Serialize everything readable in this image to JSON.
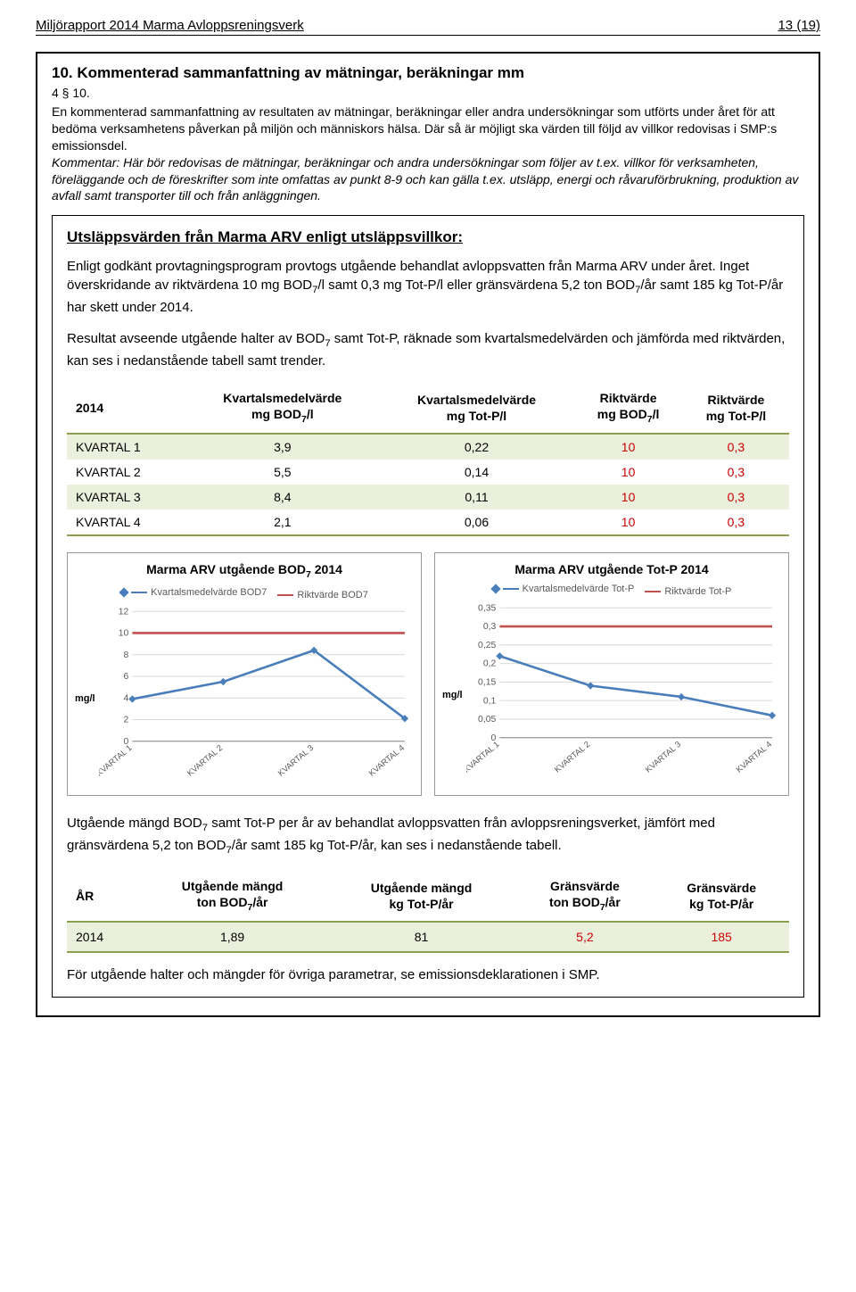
{
  "header": {
    "left": "Miljörapport 2014 Marma Avloppsreningsverk",
    "right": "13 (19)"
  },
  "section": {
    "heading": "10. Kommenterad sammanfattning av mätningar, beräkningar mm",
    "law_ref": "4 § 10.",
    "intro_plain": "En kommenterad sammanfattning av resultaten av mätningar, beräkningar eller andra undersökningar som utförts under året för att bedöma verksamhetens påverkan på miljön och människors hälsa. Där så är möjligt ska värden till följd av villkor redovisas i SMP:s emissionsdel.",
    "intro_italic": "Kommentar: Här bör redovisas de mätningar, beräkningar och andra undersökningar som följer av t.ex. villkor för verksamheten, föreläggande och de föreskrifter som inte omfattas av punkt 8-9 och kan gälla t.ex. utsläpp, energi och råvaruförbrukning, produktion av avfall samt transporter till och från anläggningen."
  },
  "content": {
    "h3": "Utsläppsvärden från Marma ARV enligt utsläppsvillkor:",
    "p1a": "Enligt godkänt provtagningsprogram provtogs utgående behandlat avloppsvatten från Marma ARV under året. Inget överskridande av riktvärdena 10 mg BOD",
    "p1b": "/l samt 0,3 mg Tot-P/l eller gränsvärdena 5,2 ton BOD",
    "p1c": "/år samt 185 kg Tot-P/år har skett under 2014.",
    "p2a": "Resultat avseende utgående halter av BOD",
    "p2b": " samt Tot-P, räknade som kvartalsmedelvärden och jämförda med riktvärden, kan ses i nedanstående tabell samt trender."
  },
  "table1": {
    "corner": "2014",
    "columns": [
      "Kvartalsmedelvärde\nmg BOD7/l",
      "Kvartalsmedelvärde\nmg Tot-P/l",
      "Riktvärde\nmg BOD7/l",
      "Riktvärde\nmg Tot-P/l"
    ],
    "rows": [
      {
        "label": "KVARTAL 1",
        "v": [
          "3,9",
          "0,22",
          "10",
          "0,3"
        ]
      },
      {
        "label": "KVARTAL 2",
        "v": [
          "5,5",
          "0,14",
          "10",
          "0,3"
        ]
      },
      {
        "label": "KVARTAL 3",
        "v": [
          "8,4",
          "0,11",
          "10",
          "0,3"
        ]
      },
      {
        "label": "KVARTAL 4",
        "v": [
          "2,1",
          "0,06",
          "10",
          "0,3"
        ]
      }
    ],
    "red_cols": [
      2,
      3
    ]
  },
  "chart1": {
    "title": "Marma ARV utgående BOD₇ 2014",
    "legend": [
      {
        "label": "Kvartalsmedelvärde BOD7",
        "color": "#4a7ebb",
        "marker": true
      },
      {
        "label": "Riktvärde BOD7",
        "color": "#c0504d",
        "marker": false
      }
    ],
    "ylabel": "mg/l",
    "categories": [
      "KVARTAL 1",
      "KVARTAL 2",
      "KVARTAL 3",
      "KVARTAL 4"
    ],
    "series_blue": [
      3.9,
      5.5,
      8.4,
      2.1
    ],
    "series_red": [
      10,
      10,
      10,
      10
    ],
    "ylim": [
      0,
      12
    ],
    "ytick_step": 2,
    "colors": {
      "blue": "#4a7ebb",
      "red": "#c0504d",
      "grid": "#d9d9d9"
    }
  },
  "chart2": {
    "title": "Marma ARV utgående Tot-P 2014",
    "legend": [
      {
        "label": "Kvartalsmedelvärde Tot-P",
        "color": "#4a7ebb",
        "marker": true
      },
      {
        "label": "Riktvärde Tot-P",
        "color": "#c0504d",
        "marker": false
      }
    ],
    "ylabel": "mg/l",
    "categories": [
      "KVARTAL 1",
      "KVARTAL 2",
      "KVARTAL 3",
      "KVARTAL 4"
    ],
    "series_blue": [
      0.22,
      0.14,
      0.11,
      0.06
    ],
    "series_red": [
      0.3,
      0.3,
      0.3,
      0.3
    ],
    "ylim": [
      0,
      0.35
    ],
    "ytick_step": 0.05,
    "colors": {
      "blue": "#4a7ebb",
      "red": "#c0504d",
      "grid": "#d9d9d9"
    }
  },
  "foot": {
    "p3a": "Utgående mängd BOD",
    "p3b": " samt Tot-P per år av behandlat avloppsvatten från avloppsreningsverket, jämfört med gränsvärdena 5,2 ton BOD",
    "p3c": "/år samt 185 kg Tot-P/år, kan ses i nedanstående tabell."
  },
  "table2": {
    "columns": [
      "ÅR",
      "Utgående mängd\nton BOD7/år",
      "Utgående mängd\nkg Tot-P/år",
      "Gränsvärde\nton BOD7/år",
      "Gränsvärde\nkg Tot-P/år"
    ],
    "row": [
      "2014",
      "1,89",
      "81",
      "5,2",
      "185"
    ],
    "red_cols": [
      3,
      4
    ]
  },
  "final": "För utgående halter och mängder för övriga parametrar, se emissionsdeklarationen i SMP."
}
